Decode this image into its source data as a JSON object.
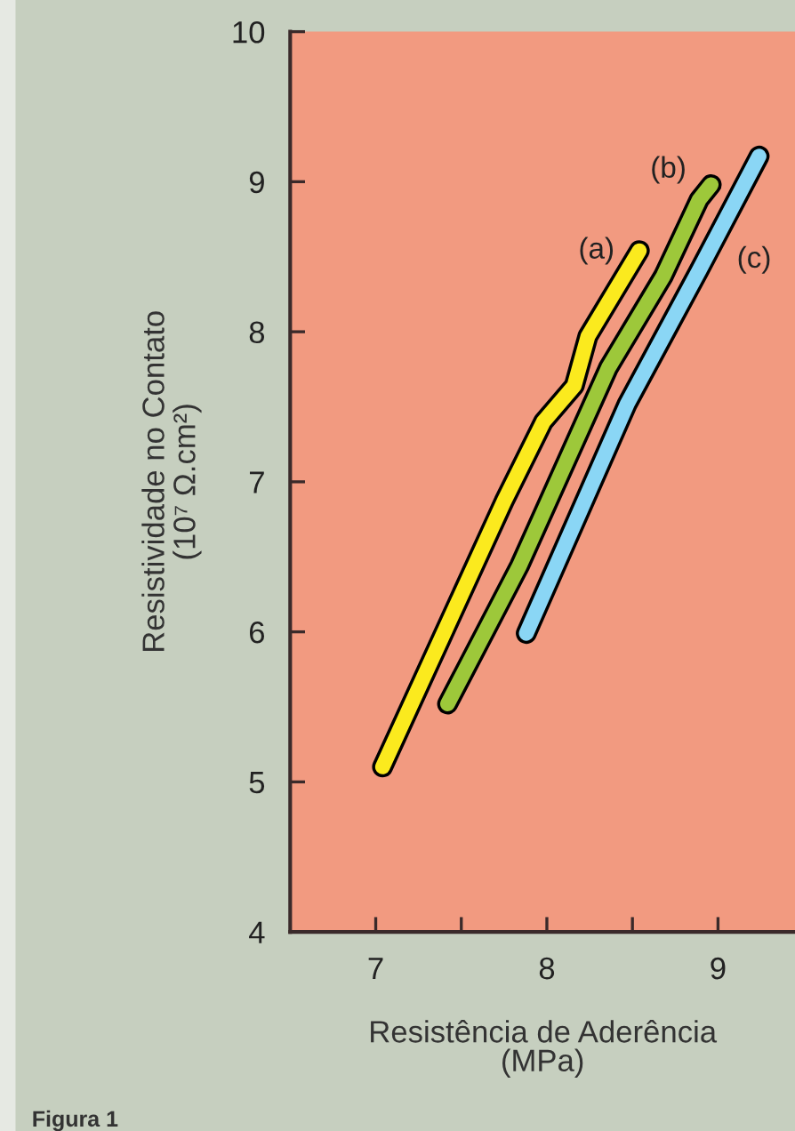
{
  "chart_data": {
    "type": "line",
    "xlabel": "Resistência de Aderência\n(MPa)",
    "ylabel": "Resistividade no Contato\n(10⁷ Ω.cm²)",
    "annotations": [
      "Figura 1"
    ],
    "xlim": [
      6.5,
      9.45
    ],
    "ylim": [
      4,
      10
    ],
    "xticks": [
      7,
      {
        "value": 7.5,
        "label": null
      },
      8,
      {
        "value": 8.5,
        "label": null
      },
      9
    ],
    "yticks": [
      4,
      5,
      6,
      7,
      8,
      9,
      10
    ],
    "series": [
      {
        "name": "(a)",
        "color": "#fbea1e",
        "x": [
          7.04,
          7.75,
          7.98,
          8.16,
          8.24,
          8.54
        ],
        "values": [
          5.1,
          6.87,
          7.4,
          7.64,
          7.97,
          8.54
        ]
      },
      {
        "name": "(b)",
        "color": "#9dc83a",
        "x": [
          7.42,
          7.84,
          8.36,
          8.68,
          8.89,
          8.96
        ],
        "values": [
          5.52,
          6.44,
          7.76,
          8.37,
          8.88,
          8.98
        ]
      },
      {
        "name": "(c)",
        "color": "#8ad6f5",
        "x": [
          7.88,
          8.47,
          8.89,
          9.24
        ],
        "values": [
          5.99,
          7.52,
          8.41,
          9.17
        ]
      }
    ]
  }
}
